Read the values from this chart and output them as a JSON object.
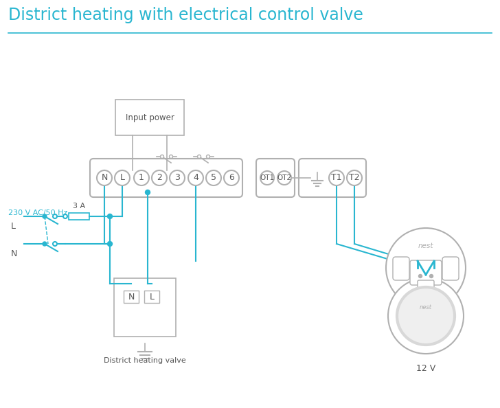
{
  "title": "District heating with electrical control valve",
  "title_color": "#29b6d0",
  "title_fontsize": 17,
  "bg_color": "#ffffff",
  "line_color": "#29b6d0",
  "gray": "#aaaaaa",
  "dark_gray": "#555555",
  "light_gray": "#b0b0b0",
  "annotation_230v": "230 V AC/50 Hz",
  "annotation_L": "L",
  "annotation_N": "N",
  "annotation_3A": "3 A",
  "annotation_input_power": "Input power",
  "annotation_valve": "District heating valve",
  "annotation_12v": "12 V"
}
